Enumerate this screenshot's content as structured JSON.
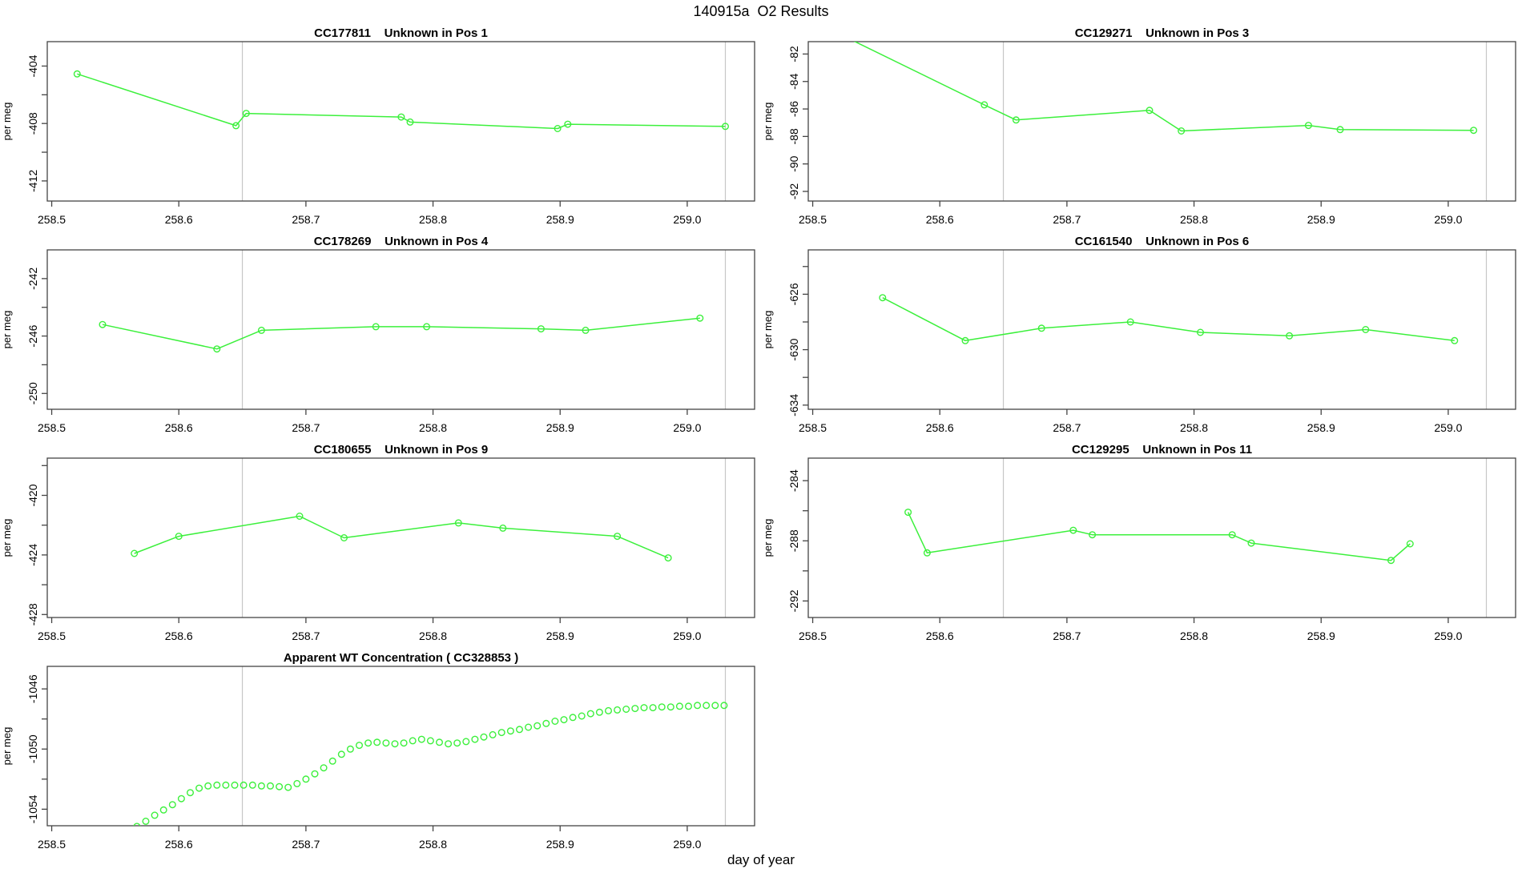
{
  "figure": {
    "title": "140915a  O2 Results",
    "xlabel": "day of year"
  },
  "colors": {
    "series": "#3CF03C",
    "reference_line": "#C6C6C6",
    "axis": "#444444",
    "text": "#000000"
  },
  "chart_data": [
    {
      "type": "line",
      "title": "CC177811    Unknown in Pos 1",
      "ylabel": "per meg",
      "xlim": [
        258.4965,
        259.053
      ],
      "ylim": [
        -413.4,
        -402.3
      ],
      "x_ticks": [
        258.5,
        258.6,
        258.7,
        258.8,
        258.9,
        259.0
      ],
      "y_ticks": [
        -412,
        -410,
        -408,
        -406,
        -404
      ],
      "y_tick_labels": [
        -412,
        -408,
        -404
      ],
      "vlines": [
        258.65,
        259.03
      ],
      "marker": "circle",
      "line": true,
      "points": [
        [
          258.52,
          -404.55
        ],
        [
          258.645,
          -408.15
        ],
        [
          258.653,
          -407.3
        ],
        [
          258.775,
          -407.55
        ],
        [
          258.782,
          -407.9
        ],
        [
          258.898,
          -408.35
        ],
        [
          258.906,
          -408.05
        ],
        [
          259.03,
          -408.2
        ]
      ]
    },
    {
      "type": "line",
      "title": "CC129271    Unknown in Pos 3",
      "ylabel": "per meg",
      "xlim": [
        258.4965,
        259.053
      ],
      "ylim": [
        -92.7,
        -81.1
      ],
      "x_ticks": [
        258.5,
        258.6,
        258.7,
        258.8,
        258.9,
        259.0
      ],
      "y_ticks": [
        -92,
        -90,
        -88,
        -86,
        -84,
        -82
      ],
      "y_tick_labels": [
        -92,
        -90,
        -88,
        -86,
        -84,
        -82
      ],
      "vlines": [
        258.65,
        259.03
      ],
      "marker": "circle",
      "line": true,
      "points": [
        [
          258.52,
          -80.5
        ],
        [
          258.635,
          -85.7
        ],
        [
          258.66,
          -86.8
        ],
        [
          258.765,
          -86.1
        ],
        [
          258.79,
          -87.6
        ],
        [
          258.89,
          -87.2
        ],
        [
          258.915,
          -87.5
        ],
        [
          259.02,
          -87.55
        ]
      ]
    },
    {
      "type": "line",
      "title": "CC178269    Unknown in Pos 4",
      "ylabel": "per meg",
      "xlim": [
        258.4965,
        259.053
      ],
      "ylim": [
        -251.1,
        -240.0
      ],
      "x_ticks": [
        258.5,
        258.6,
        258.7,
        258.8,
        258.9,
        259.0
      ],
      "y_ticks": [
        -250,
        -248,
        -246,
        -244,
        -242
      ],
      "y_tick_labels": [
        -250,
        -246,
        -242
      ],
      "vlines": [
        258.65,
        259.03
      ],
      "marker": "circle",
      "line": true,
      "points": [
        [
          258.54,
          -245.2
        ],
        [
          258.63,
          -246.9
        ],
        [
          258.665,
          -245.6
        ],
        [
          258.755,
          -245.35
        ],
        [
          258.795,
          -245.35
        ],
        [
          258.885,
          -245.5
        ],
        [
          258.92,
          -245.6
        ],
        [
          259.01,
          -244.75
        ]
      ]
    },
    {
      "type": "line",
      "title": "CC161540    Unknown in Pos 6",
      "ylabel": "per meg",
      "xlim": [
        258.4965,
        259.053
      ],
      "ylim": [
        -634.3,
        -622.8
      ],
      "x_ticks": [
        258.5,
        258.6,
        258.7,
        258.8,
        258.9,
        259.0
      ],
      "y_ticks": [
        -634,
        -632,
        -630,
        -628,
        -626,
        -624
      ],
      "y_tick_labels": [
        -634,
        -630,
        -626
      ],
      "vlines": [
        258.65,
        259.03
      ],
      "marker": "circle",
      "line": true,
      "points": [
        [
          258.555,
          -626.25
        ],
        [
          258.62,
          -629.35
        ],
        [
          258.68,
          -628.45
        ],
        [
          258.75,
          -628.0
        ],
        [
          258.805,
          -628.75
        ],
        [
          258.875,
          -629.0
        ],
        [
          258.935,
          -628.55
        ],
        [
          259.005,
          -629.35
        ]
      ]
    },
    {
      "type": "line",
      "title": "CC180655    Unknown in Pos 9",
      "ylabel": "per meg",
      "xlim": [
        258.4965,
        259.053
      ],
      "ylim": [
        -428.2,
        -417.5
      ],
      "x_ticks": [
        258.5,
        258.6,
        258.7,
        258.8,
        258.9,
        259.0
      ],
      "y_ticks": [
        -428,
        -426,
        -424,
        -422,
        -420,
        -418
      ],
      "y_tick_labels": [
        -428,
        -424,
        -420
      ],
      "vlines": [
        258.65,
        259.03
      ],
      "marker": "circle",
      "line": true,
      "points": [
        [
          258.565,
          -423.9
        ],
        [
          258.6,
          -422.75
        ],
        [
          258.695,
          -421.4
        ],
        [
          258.73,
          -422.85
        ],
        [
          258.82,
          -421.85
        ],
        [
          258.855,
          -422.2
        ],
        [
          258.945,
          -422.75
        ],
        [
          258.985,
          -424.2
        ]
      ]
    },
    {
      "type": "line",
      "title": "CC129295    Unknown in Pos 11",
      "ylabel": "per meg",
      "xlim": [
        258.4965,
        259.053
      ],
      "ylim": [
        -293.1,
        -282.5
      ],
      "x_ticks": [
        258.5,
        258.6,
        258.7,
        258.8,
        258.9,
        259.0
      ],
      "y_ticks": [
        -292,
        -290,
        -288,
        -286,
        -284
      ],
      "y_tick_labels": [
        -292,
        -288,
        -284
      ],
      "vlines": [
        258.65,
        259.03
      ],
      "marker": "circle",
      "line": true,
      "points": [
        [
          258.575,
          -286.1
        ],
        [
          258.59,
          -288.8
        ],
        [
          258.705,
          -287.3
        ],
        [
          258.72,
          -287.6
        ],
        [
          258.83,
          -287.6
        ],
        [
          258.845,
          -288.15
        ],
        [
          258.955,
          -289.3
        ],
        [
          258.97,
          -288.2
        ]
      ]
    },
    {
      "type": "scatter",
      "title": "Apparent WT Concentration ( CC328853 )",
      "ylabel": "per meg",
      "xlim": [
        258.4965,
        259.053
      ],
      "ylim": [
        -1055.1,
        -1044.5
      ],
      "x_ticks": [
        258.5,
        258.6,
        258.7,
        258.8,
        258.9,
        259.0
      ],
      "y_ticks": [
        -1054,
        -1052,
        -1050,
        -1048,
        -1046
      ],
      "y_tick_labels": [
        -1054,
        -1050,
        -1046
      ],
      "vlines": [
        258.65,
        259.03
      ],
      "marker": "circle",
      "line": false,
      "points": [
        [
          258.56,
          -1055.45
        ],
        [
          258.567,
          -1055.15
        ],
        [
          258.574,
          -1054.8
        ],
        [
          258.581,
          -1054.4
        ],
        [
          258.588,
          -1054.05
        ],
        [
          258.595,
          -1053.7
        ],
        [
          258.602,
          -1053.3
        ],
        [
          258.609,
          -1052.9
        ],
        [
          258.616,
          -1052.6
        ],
        [
          258.623,
          -1052.45
        ],
        [
          258.63,
          -1052.4
        ],
        [
          258.637,
          -1052.4
        ],
        [
          258.644,
          -1052.4
        ],
        [
          258.651,
          -1052.4
        ],
        [
          258.658,
          -1052.4
        ],
        [
          258.665,
          -1052.45
        ],
        [
          258.672,
          -1052.45
        ],
        [
          258.679,
          -1052.5
        ],
        [
          258.686,
          -1052.55
        ],
        [
          258.693,
          -1052.3
        ],
        [
          258.7,
          -1052.0
        ],
        [
          258.707,
          -1051.65
        ],
        [
          258.714,
          -1051.25
        ],
        [
          258.721,
          -1050.8
        ],
        [
          258.728,
          -1050.35
        ],
        [
          258.735,
          -1050.0
        ],
        [
          258.742,
          -1049.75
        ],
        [
          258.749,
          -1049.6
        ],
        [
          258.756,
          -1049.55
        ],
        [
          258.763,
          -1049.6
        ],
        [
          258.77,
          -1049.65
        ],
        [
          258.777,
          -1049.6
        ],
        [
          258.784,
          -1049.45
        ],
        [
          258.791,
          -1049.35
        ],
        [
          258.798,
          -1049.45
        ],
        [
          258.805,
          -1049.55
        ],
        [
          258.812,
          -1049.65
        ],
        [
          258.819,
          -1049.6
        ],
        [
          258.826,
          -1049.5
        ],
        [
          258.833,
          -1049.35
        ],
        [
          258.84,
          -1049.2
        ],
        [
          258.847,
          -1049.05
        ],
        [
          258.854,
          -1048.9
        ],
        [
          258.861,
          -1048.8
        ],
        [
          258.868,
          -1048.7
        ],
        [
          258.875,
          -1048.55
        ],
        [
          258.882,
          -1048.45
        ],
        [
          258.889,
          -1048.3
        ],
        [
          258.896,
          -1048.15
        ],
        [
          258.903,
          -1048.05
        ],
        [
          258.91,
          -1047.9
        ],
        [
          258.917,
          -1047.8
        ],
        [
          258.924,
          -1047.65
        ],
        [
          258.931,
          -1047.55
        ],
        [
          258.938,
          -1047.45
        ],
        [
          258.945,
          -1047.4
        ],
        [
          258.952,
          -1047.35
        ],
        [
          258.959,
          -1047.3
        ],
        [
          258.966,
          -1047.25
        ],
        [
          258.973,
          -1047.25
        ],
        [
          258.98,
          -1047.2
        ],
        [
          258.987,
          -1047.2
        ],
        [
          258.994,
          -1047.15
        ],
        [
          259.001,
          -1047.15
        ],
        [
          259.008,
          -1047.1
        ],
        [
          259.015,
          -1047.1
        ],
        [
          259.022,
          -1047.1
        ],
        [
          259.029,
          -1047.1
        ]
      ]
    }
  ]
}
